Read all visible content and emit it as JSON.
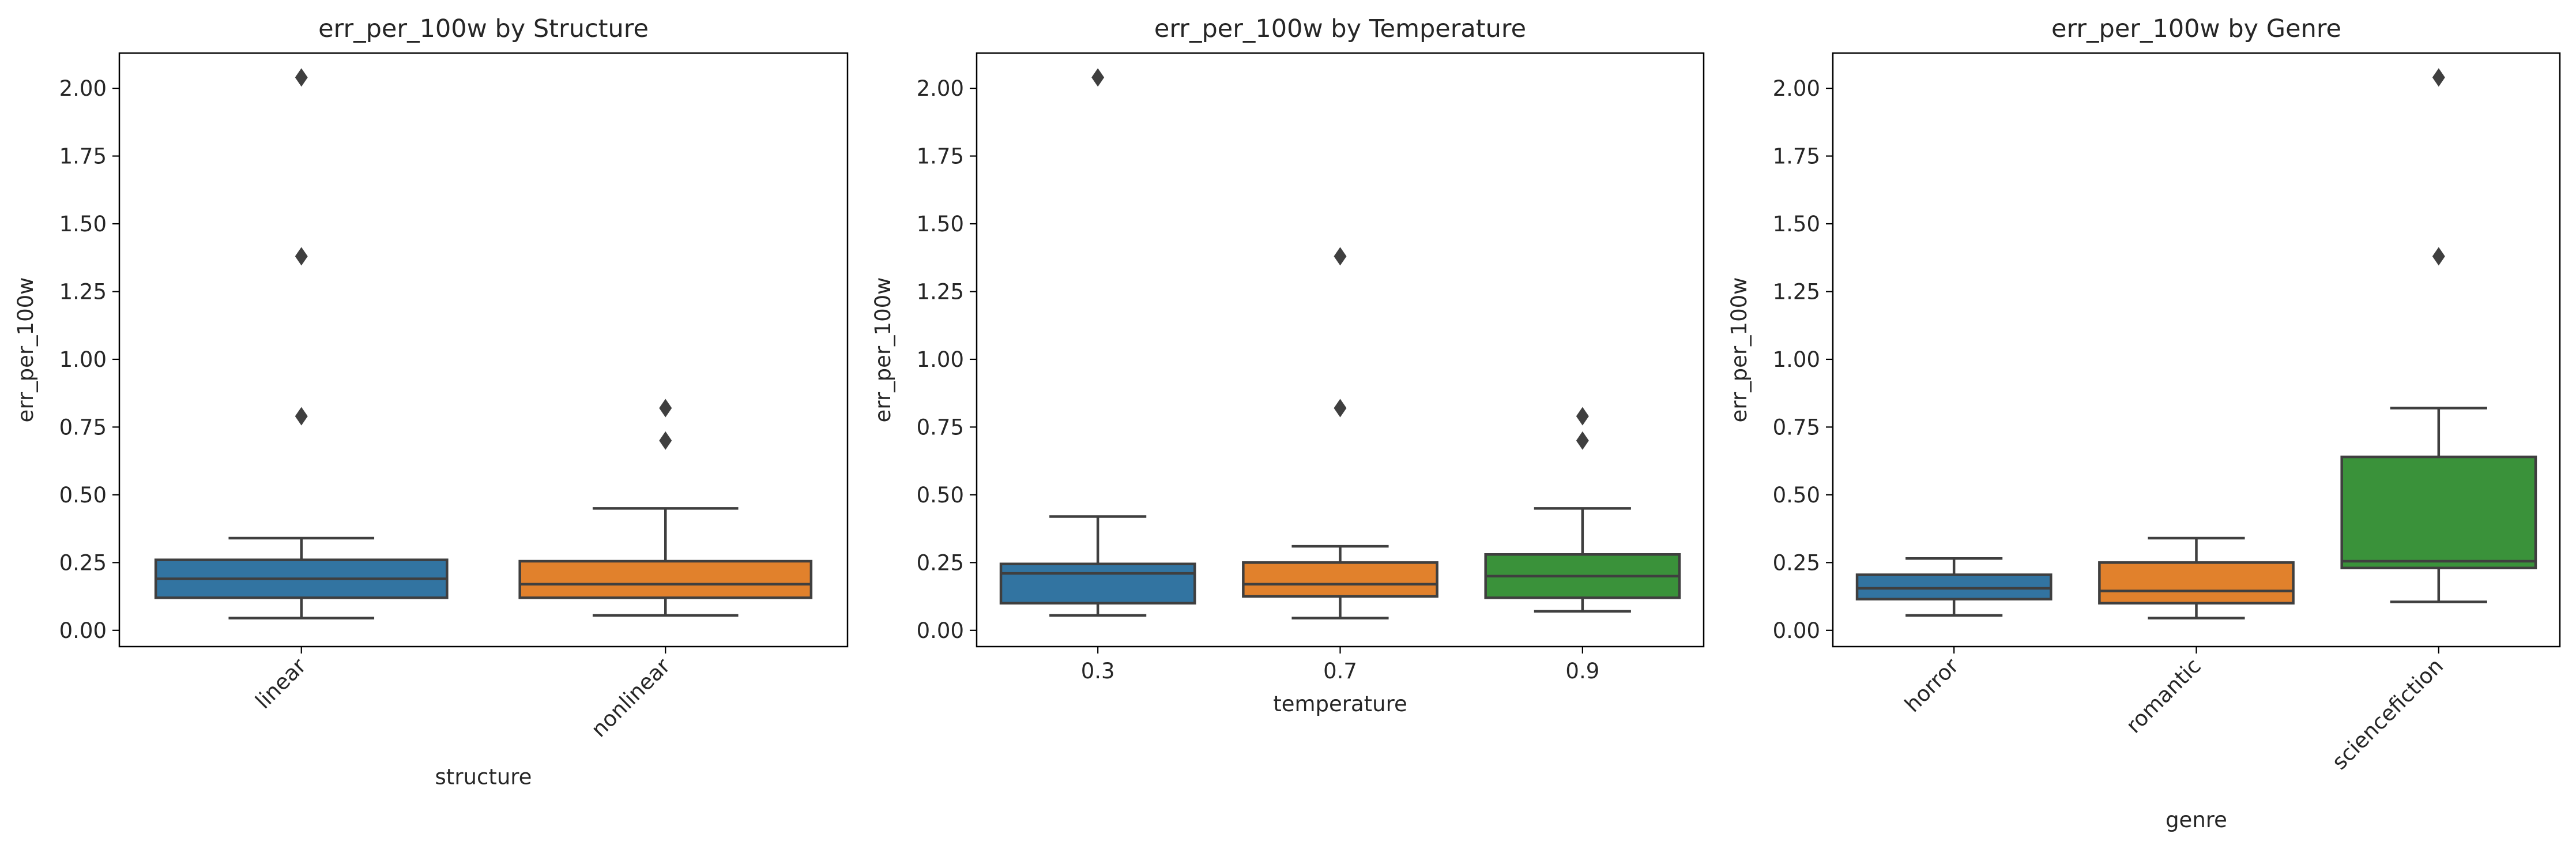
{
  "figure": {
    "colors": {
      "blue": "#3274a1",
      "orange": "#e1812c",
      "green": "#3a923a",
      "line": "#3f3f3f"
    }
  },
  "chart_data": [
    {
      "type": "box",
      "title": "err_per_100w by Structure",
      "xlabel": "structure",
      "ylabel": "err_per_100w",
      "ylim": [
        -0.06,
        2.13
      ],
      "yticks": [
        "0.00",
        "0.25",
        "0.50",
        "0.75",
        "1.00",
        "1.25",
        "1.50",
        "1.75",
        "2.00"
      ],
      "xtick_rotation": 45,
      "categories": [
        "linear",
        "nonlinear"
      ],
      "boxes": [
        {
          "name": "linear",
          "color": "#3274a1",
          "whisker_low": 0.045,
          "q1": 0.12,
          "median": 0.19,
          "q3": 0.26,
          "whisker_high": 0.34,
          "outliers": [
            0.79,
            1.38,
            2.04
          ]
        },
        {
          "name": "nonlinear",
          "color": "#e1812c",
          "whisker_low": 0.055,
          "q1": 0.12,
          "median": 0.17,
          "q3": 0.255,
          "whisker_high": 0.45,
          "outliers": [
            0.7,
            0.82
          ]
        }
      ]
    },
    {
      "type": "box",
      "title": "err_per_100w by Temperature",
      "xlabel": "temperature",
      "ylabel": "err_per_100w",
      "ylim": [
        -0.06,
        2.13
      ],
      "yticks": [
        "0.00",
        "0.25",
        "0.50",
        "0.75",
        "1.00",
        "1.25",
        "1.50",
        "1.75",
        "2.00"
      ],
      "xtick_rotation": 0,
      "categories": [
        "0.3",
        "0.7",
        "0.9"
      ],
      "boxes": [
        {
          "name": "0.3",
          "color": "#3274a1",
          "whisker_low": 0.055,
          "q1": 0.1,
          "median": 0.21,
          "q3": 0.245,
          "whisker_high": 0.42,
          "outliers": [
            2.04
          ]
        },
        {
          "name": "0.7",
          "color": "#e1812c",
          "whisker_low": 0.045,
          "q1": 0.125,
          "median": 0.17,
          "q3": 0.25,
          "whisker_high": 0.31,
          "outliers": [
            0.82,
            1.38
          ]
        },
        {
          "name": "0.9",
          "color": "#3a923a",
          "whisker_low": 0.07,
          "q1": 0.12,
          "median": 0.2,
          "q3": 0.28,
          "whisker_high": 0.45,
          "outliers": [
            0.7,
            0.79
          ]
        }
      ]
    },
    {
      "type": "box",
      "title": "err_per_100w by Genre",
      "xlabel": "genre",
      "ylabel": "err_per_100w",
      "ylim": [
        -0.06,
        2.13
      ],
      "yticks": [
        "0.00",
        "0.25",
        "0.50",
        "0.75",
        "1.00",
        "1.25",
        "1.50",
        "1.75",
        "2.00"
      ],
      "xtick_rotation": 45,
      "categories": [
        "horror",
        "romantic",
        "sciencefiction"
      ],
      "boxes": [
        {
          "name": "horror",
          "color": "#3274a1",
          "whisker_low": 0.055,
          "q1": 0.115,
          "median": 0.155,
          "q3": 0.205,
          "whisker_high": 0.265,
          "outliers": []
        },
        {
          "name": "romantic",
          "color": "#e1812c",
          "whisker_low": 0.045,
          "q1": 0.1,
          "median": 0.145,
          "q3": 0.25,
          "whisker_high": 0.34,
          "outliers": []
        },
        {
          "name": "sciencefiction",
          "color": "#3a923a",
          "whisker_low": 0.105,
          "q1": 0.23,
          "median": 0.255,
          "q3": 0.64,
          "whisker_high": 0.82,
          "outliers": [
            1.38,
            2.04
          ]
        }
      ]
    }
  ]
}
